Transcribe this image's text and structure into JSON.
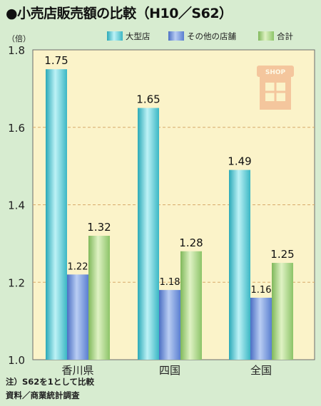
{
  "title": "●小売店販売額の比較（H10／S62）",
  "unit_label": "（倍）",
  "notes": [
    "注）S62を1として比較",
    "資料／商業統計調査"
  ],
  "shop_sign": "SHOP",
  "colors": {
    "background": "#d7ecd0",
    "plot_background": "#fbf3c9",
    "series": [
      "#4fc3cf",
      "#6f8fd8",
      "#a3d27f"
    ]
  },
  "chart_data": {
    "type": "bar",
    "categories": [
      "香川県",
      "四国",
      "全国"
    ],
    "series": [
      {
        "name": "大型店",
        "values": [
          1.75,
          1.65,
          1.49
        ]
      },
      {
        "name": "その他の店舗",
        "values": [
          1.22,
          1.18,
          1.16
        ]
      },
      {
        "name": "合計",
        "values": [
          1.32,
          1.28,
          1.25
        ]
      }
    ],
    "ylim": [
      1.0,
      1.8
    ],
    "yticks": [
      "1.0",
      "1.2",
      "1.4",
      "1.6",
      "1.8"
    ],
    "grid": true,
    "legend_position": "top-right"
  }
}
